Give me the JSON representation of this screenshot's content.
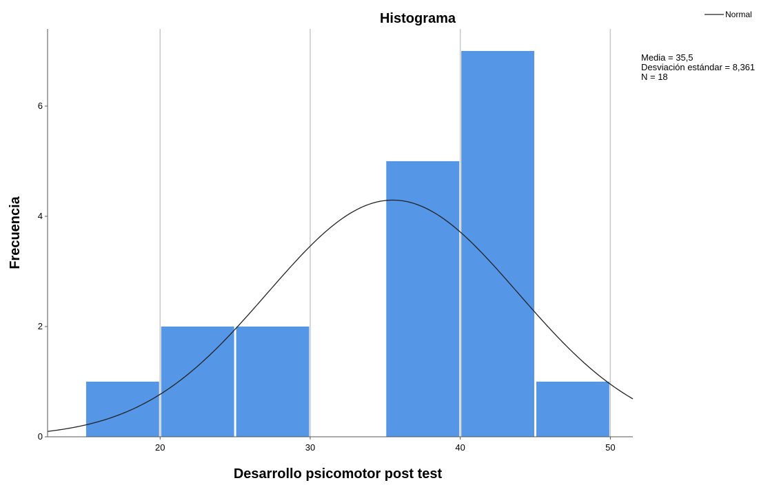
{
  "chart_data": {
    "type": "bar",
    "title": "Histograma",
    "xlabel": "Desarrollo psicomotor post test",
    "ylabel": "Frecuencia",
    "bins": [
      {
        "start": 15,
        "end": 20,
        "value": 1
      },
      {
        "start": 20,
        "end": 25,
        "value": 2
      },
      {
        "start": 25,
        "end": 30,
        "value": 2
      },
      {
        "start": 30,
        "end": 35,
        "value": 0
      },
      {
        "start": 35,
        "end": 40,
        "value": 5
      },
      {
        "start": 40,
        "end": 45,
        "value": 7
      },
      {
        "start": 45,
        "end": 50,
        "value": 1
      }
    ],
    "xlim": [
      12.5,
      51.5
    ],
    "ylim": [
      0,
      7.4
    ],
    "xticks": [
      "20",
      "30",
      "40",
      "50"
    ],
    "yticks": [
      "0",
      "2",
      "4",
      "6"
    ],
    "xtick_values": [
      20,
      30,
      40,
      50
    ],
    "ytick_values": [
      0,
      2,
      4,
      6
    ],
    "vertical_grid": true,
    "bar_color": "#5596e6",
    "curve_color": "#222222",
    "normal_curve": {
      "mean": 35.5,
      "sd": 8.361,
      "n": 18,
      "bin_width": 5
    },
    "legend": {
      "position": "top-right",
      "label": "Normal"
    },
    "stats": {
      "mean_text": "Media = 35,5",
      "sd_text": "Desviación estándar = 8,361",
      "n_text": "N = 18"
    }
  }
}
